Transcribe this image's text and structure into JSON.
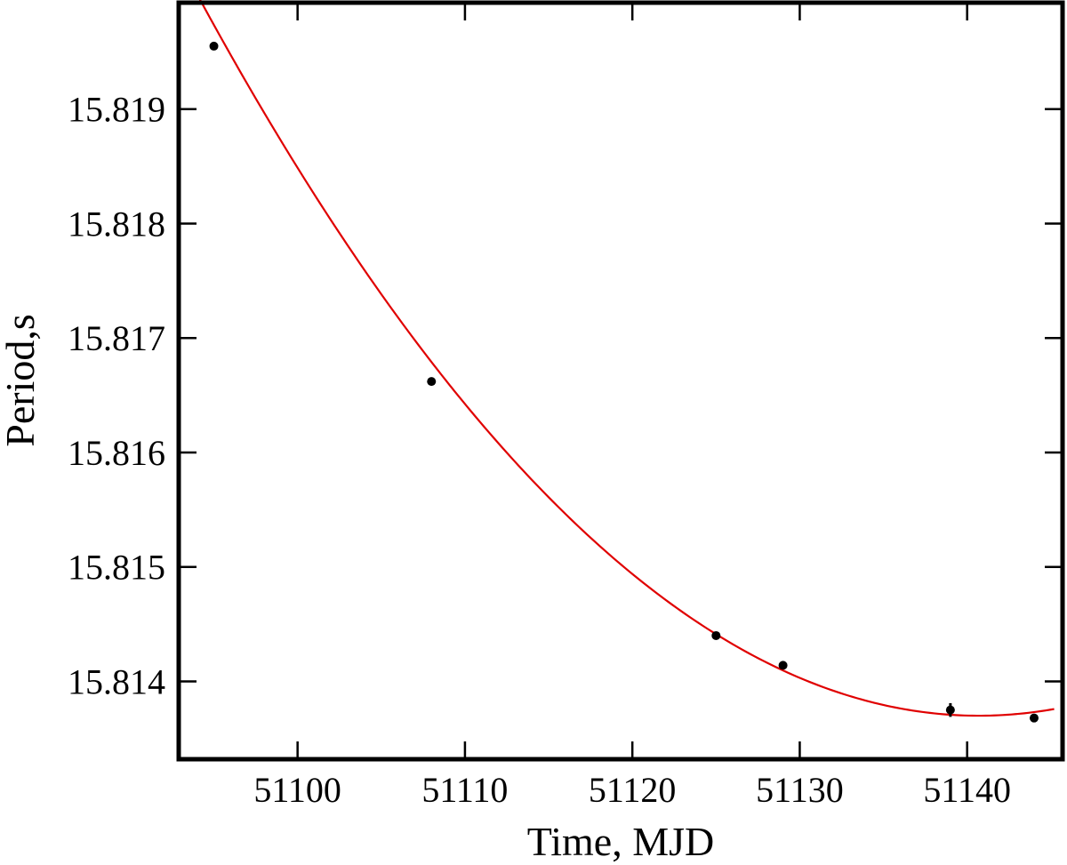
{
  "chart_data": {
    "type": "scatter",
    "title": "",
    "xlabel": "Time, MJD",
    "ylabel": "Period,s",
    "xlim": [
      51092.9,
      51145.7
    ],
    "ylim": [
      15.81332,
      15.81993
    ],
    "x_ticks": [
      51100,
      51110,
      51120,
      51130,
      51140
    ],
    "y_ticks": [
      15.814,
      15.815,
      15.816,
      15.817,
      15.818,
      15.819
    ],
    "x_tick_labels": [
      "51100",
      "51110",
      "51120",
      "51130",
      "51140"
    ],
    "y_tick_labels": [
      "15.814",
      "15.815",
      "15.816",
      "15.817",
      "15.818",
      "15.819"
    ],
    "grid": false,
    "legend": "none",
    "points": [
      {
        "x": 51095.0,
        "y": 15.81955,
        "yerr": 5e-06
      },
      {
        "x": 51108.0,
        "y": 15.81662,
        "yerr": 5e-06
      },
      {
        "x": 51125.0,
        "y": 15.8144,
        "yerr": 5e-06
      },
      {
        "x": 51129.0,
        "y": 15.81414,
        "yerr": 5e-06
      },
      {
        "x": 51139.0,
        "y": 15.81375,
        "yerr": 6e-05
      },
      {
        "x": 51144.0,
        "y": 15.81368,
        "yerr": 5e-06
      }
    ],
    "fit_curve": {
      "type": "quadratic",
      "vertex_x": 51140.7,
      "vertex_y": 15.8137,
      "a": 2.89e-06,
      "x_range": [
        51094.0,
        51145.2
      ]
    },
    "colors": {
      "points": "#000000",
      "fit_curve": "#e00000",
      "axes": "#000000"
    }
  }
}
